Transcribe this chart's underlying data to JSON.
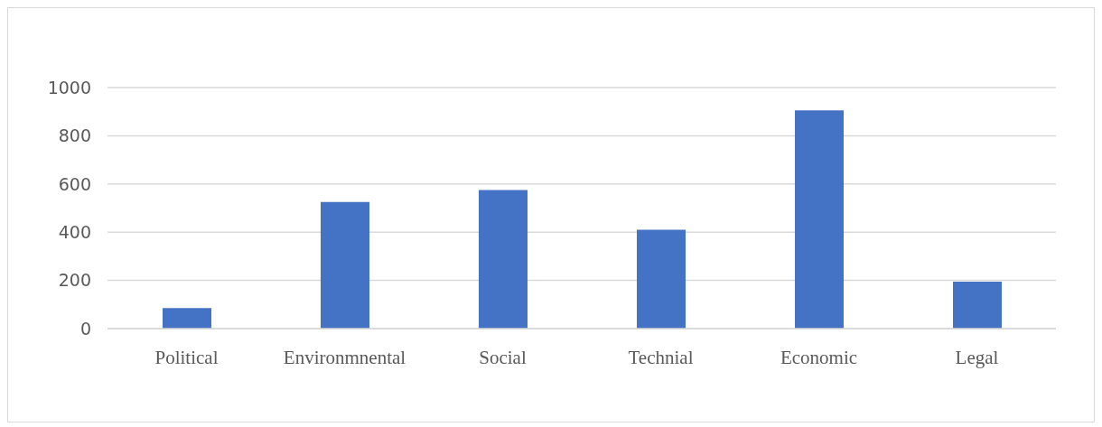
{
  "chart_data": {
    "type": "bar",
    "categories": [
      "Political",
      "Environmnental",
      "Social",
      "Technial",
      "Economic",
      "Legal"
    ],
    "values": [
      85,
      525,
      575,
      410,
      905,
      195
    ],
    "color": "#4472c4",
    "ylim": [
      0,
      1000
    ],
    "yticks": [
      0,
      200,
      400,
      600,
      800,
      1000
    ],
    "grid": "y"
  }
}
